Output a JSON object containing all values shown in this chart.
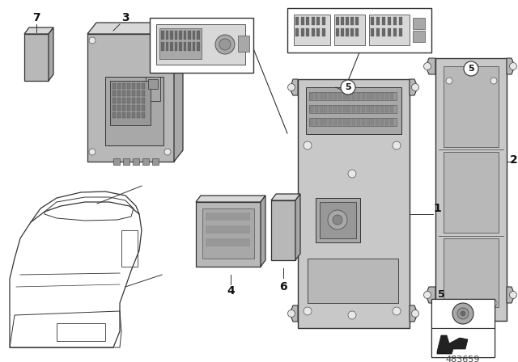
{
  "bg_color": "#ffffff",
  "diagram_number": "483659",
  "lc": "#333333",
  "lc2": "#555555",
  "gray1": "#c8c8c8",
  "gray2": "#b8b8b8",
  "gray3": "#a8a8a8",
  "gray4": "#989898",
  "gray5": "#d8d8d8",
  "gray6": "#e8e8e8"
}
